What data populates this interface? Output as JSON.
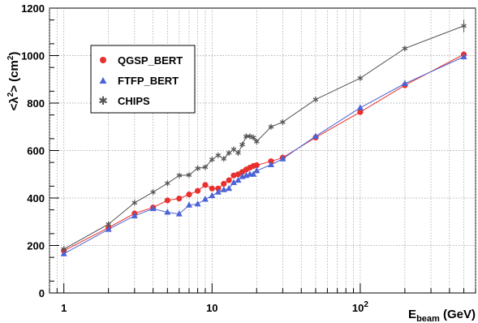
{
  "chart_data": {
    "type": "line",
    "xscale": "log",
    "xlim": [
      0.8,
      600
    ],
    "ylim": [
      0,
      1200
    ],
    "grid": true,
    "legend": "top-left",
    "xlabel_main": "E",
    "xlabel_sub": "beam",
    "xlabel_unit": " (GeV)",
    "ylabel_main": "<λ",
    "ylabel_sup": "2",
    "ylabel_mid": "> (cm",
    "ylabel_sup2": "2",
    "ylabel_end": ")",
    "x_ticks": [
      {
        "value": 1,
        "label": "1"
      },
      {
        "value": 10,
        "label": "10"
      },
      {
        "value": 100,
        "label": "10",
        "sup": "2"
      }
    ],
    "y_ticks": [
      {
        "value": 0,
        "label": "0"
      },
      {
        "value": 200,
        "label": "200"
      },
      {
        "value": 400,
        "label": "400"
      },
      {
        "value": 600,
        "label": "600"
      },
      {
        "value": 800,
        "label": "800"
      },
      {
        "value": 1000,
        "label": "1000"
      },
      {
        "value": 1200,
        "label": "1200"
      }
    ],
    "series": [
      {
        "name": "QGSP_BERT",
        "color": "#e8312f",
        "marker": "circle",
        "x": [
          1,
          2,
          3,
          4,
          5,
          6,
          7,
          8,
          9,
          10,
          11,
          12,
          13,
          14,
          15,
          16,
          17,
          18,
          19,
          20,
          25,
          30,
          50,
          100,
          200,
          500
        ],
        "y": [
          178,
          275,
          335,
          360,
          390,
          398,
          415,
          430,
          455,
          440,
          440,
          460,
          475,
          495,
          500,
          510,
          520,
          528,
          535,
          538,
          555,
          570,
          655,
          762,
          875,
          1005
        ]
      },
      {
        "name": "FTFP_BERT",
        "color": "#4b63d6",
        "marker": "triangle",
        "x": [
          1,
          2,
          3,
          4,
          5,
          6,
          7,
          8,
          9,
          10,
          11,
          12,
          13,
          14,
          15,
          16,
          17,
          18,
          19,
          20,
          25,
          30,
          50,
          100,
          200,
          500
        ],
        "y": [
          165,
          268,
          325,
          355,
          340,
          333,
          370,
          375,
          395,
          410,
          425,
          435,
          440,
          465,
          475,
          490,
          495,
          500,
          500,
          515,
          540,
          565,
          660,
          780,
          882,
          995
        ]
      },
      {
        "name": "CHIPS",
        "color": "#555555",
        "marker": "star",
        "x": [
          1,
          2,
          3,
          4,
          5,
          6,
          7,
          8,
          9,
          10,
          11,
          12,
          13,
          14,
          15,
          16,
          17,
          18,
          19,
          20,
          25,
          30,
          50,
          100,
          200,
          500
        ],
        "y": [
          185,
          290,
          380,
          425,
          462,
          495,
          497,
          525,
          530,
          562,
          580,
          565,
          590,
          605,
          590,
          625,
          660,
          660,
          655,
          638,
          700,
          720,
          815,
          905,
          1030,
          1125
        ]
      }
    ]
  }
}
